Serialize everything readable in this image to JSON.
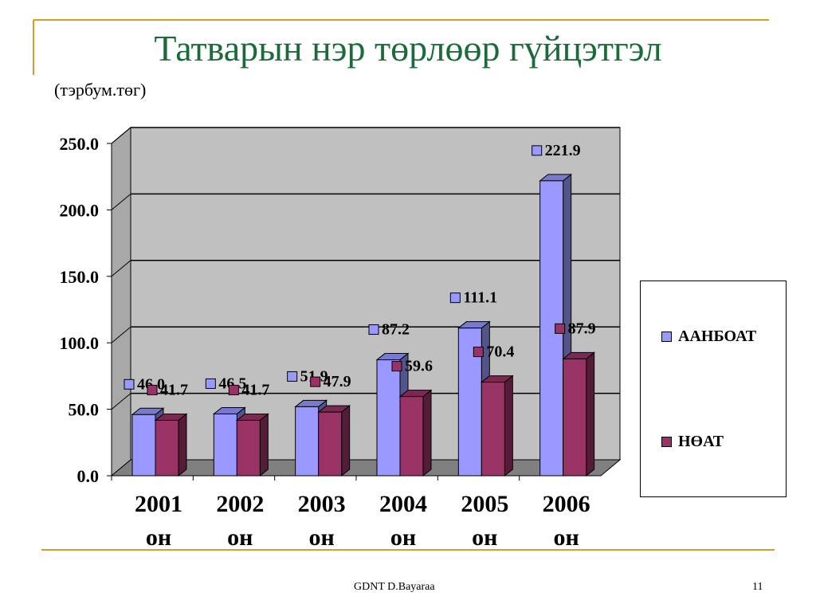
{
  "slide": {
    "title": "Татварын нэр төрлөөр гүйцэтгэл",
    "subtitle": "(тэрбум.төг)",
    "footer": "GDNT    D.Bayaraa",
    "page_number": "11"
  },
  "colors": {
    "accent_line": "#d4a020",
    "title": "#1a6a3a",
    "series_a": "#9999ff",
    "series_b": "#993366",
    "plot_back": "#c0c0c0",
    "plot_floor": "#808080"
  },
  "chart_data": {
    "type": "bar",
    "title": "",
    "categories": [
      "2001 он",
      "2002 он",
      "2003 он",
      "2004 он",
      "2005 он",
      "2006 он"
    ],
    "category_lines": [
      [
        "2001",
        "он"
      ],
      [
        "2002",
        "он"
      ],
      [
        "2003",
        "он"
      ],
      [
        "2004",
        "он"
      ],
      [
        "2005",
        "он"
      ],
      [
        "2006",
        "он"
      ]
    ],
    "series": [
      {
        "name": "ААНБОАТ",
        "values": [
          46.0,
          46.5,
          51.9,
          87.2,
          111.1,
          221.9
        ],
        "labels": [
          "46.0",
          "46.5",
          "51.9",
          "87.2",
          "111.1",
          "221.9"
        ]
      },
      {
        "name": "НӨАТ",
        "values": [
          41.7,
          41.7,
          47.9,
          59.6,
          70.4,
          87.9
        ],
        "labels": [
          "41.7",
          "41.7",
          "47.9",
          "59.6",
          "70.4",
          "87.9"
        ]
      }
    ],
    "ylim": [
      0,
      250
    ],
    "yticks": [
      "0.0",
      "50.0",
      "100.0",
      "150.0",
      "200.0",
      "250.0"
    ],
    "xlabel": "",
    "ylabel": "",
    "grid": true,
    "legend_position": "right",
    "style": "3d-clustered-column"
  }
}
